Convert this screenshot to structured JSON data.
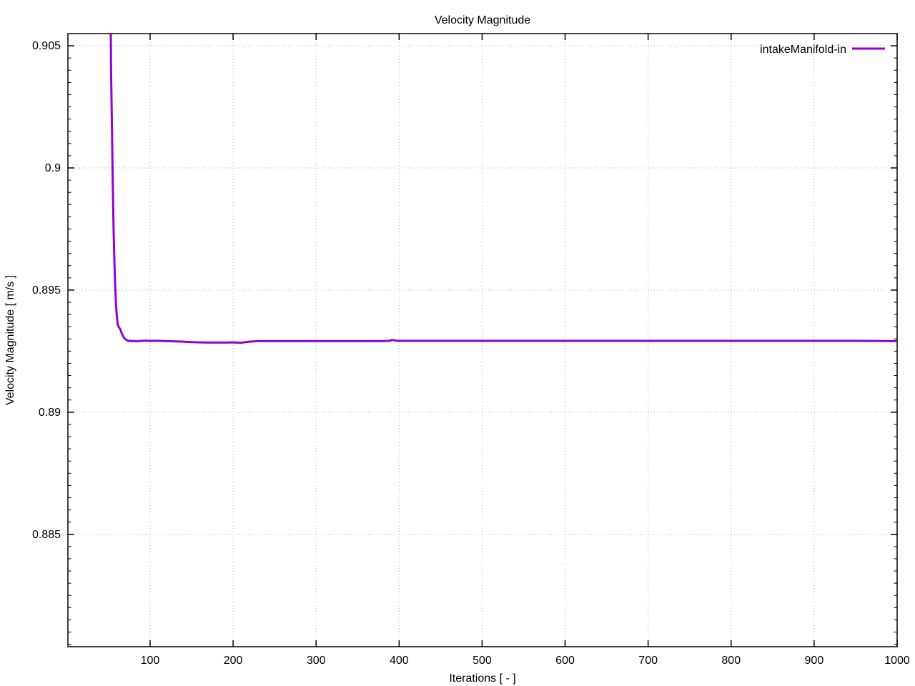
{
  "chart_data": {
    "type": "line",
    "title": "Velocity Magnitude",
    "xlabel": "Iterations [ - ]",
    "ylabel": "Velocity Magnitude [ m/s ]",
    "xlim": [
      1,
      1000
    ],
    "ylim": [
      0.8804,
      0.9055
    ],
    "grid": "dotted-at-major-ticks",
    "legend_position": "top-right-inside",
    "x_ticks": [
      {
        "value": 100,
        "label": "100"
      },
      {
        "value": 200,
        "label": "200"
      },
      {
        "value": 300,
        "label": "300"
      },
      {
        "value": 400,
        "label": "400"
      },
      {
        "value": 500,
        "label": "500"
      },
      {
        "value": 600,
        "label": "600"
      },
      {
        "value": 700,
        "label": "700"
      },
      {
        "value": 800,
        "label": "800"
      },
      {
        "value": 900,
        "label": "900"
      },
      {
        "value": 1000,
        "label": "1000"
      }
    ],
    "y_ticks": [
      {
        "value": 0.885,
        "label": "0.885"
      },
      {
        "value": 0.89,
        "label": "0.89"
      },
      {
        "value": 0.895,
        "label": "0.895"
      },
      {
        "value": 0.9,
        "label": "0.9"
      },
      {
        "value": 0.905,
        "label": "0.905"
      }
    ],
    "y_minor_tick_step": 0.0005,
    "series": [
      {
        "name": "intakeManifold-in",
        "color": "#9400d3",
        "points": [
          [
            51,
            0.912
          ],
          [
            53,
            0.904
          ],
          [
            55,
            0.8995
          ],
          [
            56,
            0.8975
          ],
          [
            57,
            0.8962
          ],
          [
            58,
            0.8951
          ],
          [
            59,
            0.8944
          ],
          [
            60,
            0.8939
          ],
          [
            61,
            0.8936
          ],
          [
            62,
            0.8935
          ],
          [
            63,
            0.89345
          ],
          [
            64,
            0.8934
          ],
          [
            65,
            0.8933
          ],
          [
            66,
            0.89322
          ],
          [
            67,
            0.89315
          ],
          [
            68,
            0.89308
          ],
          [
            69,
            0.89303
          ],
          [
            70,
            0.89299
          ],
          [
            72,
            0.89295
          ],
          [
            74,
            0.89291
          ],
          [
            76,
            0.89293
          ],
          [
            78,
            0.8929
          ],
          [
            80,
            0.89292
          ],
          [
            83,
            0.8929
          ],
          [
            86,
            0.89291
          ],
          [
            90,
            0.89292
          ],
          [
            95,
            0.89293
          ],
          [
            100,
            0.89292
          ],
          [
            110,
            0.89292
          ],
          [
            120,
            0.89291
          ],
          [
            130,
            0.8929
          ],
          [
            140,
            0.89289
          ],
          [
            150,
            0.89287
          ],
          [
            160,
            0.89286
          ],
          [
            170,
            0.89285
          ],
          [
            180,
            0.89285
          ],
          [
            190,
            0.89285
          ],
          [
            200,
            0.89286
          ],
          [
            210,
            0.89284
          ],
          [
            215,
            0.89287
          ],
          [
            220,
            0.89289
          ],
          [
            225,
            0.8929
          ],
          [
            230,
            0.89291
          ],
          [
            240,
            0.89291
          ],
          [
            260,
            0.89291
          ],
          [
            280,
            0.89291
          ],
          [
            300,
            0.89291
          ],
          [
            320,
            0.89291
          ],
          [
            340,
            0.89291
          ],
          [
            360,
            0.89291
          ],
          [
            380,
            0.89291
          ],
          [
            388,
            0.89292
          ],
          [
            392,
            0.89296
          ],
          [
            396,
            0.89293
          ],
          [
            400,
            0.89292
          ],
          [
            410,
            0.89292
          ],
          [
            430,
            0.89292
          ],
          [
            460,
            0.89292
          ],
          [
            500,
            0.89292
          ],
          [
            550,
            0.89292
          ],
          [
            600,
            0.89292
          ],
          [
            650,
            0.89292
          ],
          [
            700,
            0.89292
          ],
          [
            750,
            0.89292
          ],
          [
            800,
            0.89292
          ],
          [
            850,
            0.89292
          ],
          [
            900,
            0.89292
          ],
          [
            950,
            0.89292
          ],
          [
            1000,
            0.89291
          ]
        ]
      }
    ]
  },
  "colors": {
    "line": "#9400d3",
    "grid": "#b0b0b0",
    "axis": "#000000",
    "background": "#ffffff"
  }
}
